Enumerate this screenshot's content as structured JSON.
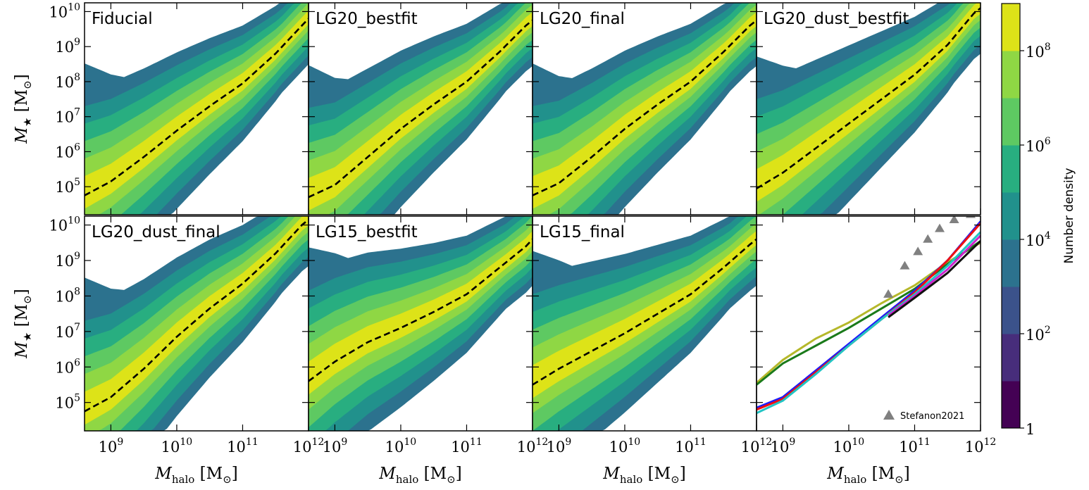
{
  "chart_data": {
    "type": "heatmap",
    "xlabel": "M_halo [M_⊙]",
    "xlabel_main": "M",
    "xlabel_sub": "halo",
    "xlabel_unit": "[M",
    "xlabel_unit_sub": "⊙",
    "xlabel_close": "]",
    "ylabel": "M_★ [M_⊙]",
    "ylabel_main": "M",
    "ylabel_sub": "★",
    "ylabel_unit": "[M",
    "ylabel_unit_sub": "⊙",
    "ylabel_close": "]",
    "xscale": "log",
    "yscale": "log",
    "xlim_exp": [
      8.6,
      12.0
    ],
    "ylim_exp": [
      4.2,
      10.25
    ],
    "x_tick_exps": [
      9,
      10,
      11,
      12
    ],
    "y_tick_exps": [
      5,
      6,
      7,
      8,
      9,
      10
    ],
    "tick_base": "10",
    "panels": [
      {
        "title": "Fiducial",
        "median_curve": [
          [
            8.6,
            4.75
          ],
          [
            9.0,
            5.15
          ],
          [
            9.5,
            5.85
          ],
          [
            10.0,
            6.6
          ],
          [
            10.5,
            7.3
          ],
          [
            11.0,
            7.95
          ],
          [
            11.5,
            8.8
          ],
          [
            11.9,
            9.6
          ],
          [
            12.0,
            9.8
          ]
        ]
      },
      {
        "title": "LG20_bestfit",
        "median_curve": [
          [
            8.6,
            4.7
          ],
          [
            9.0,
            5.05
          ],
          [
            9.5,
            5.85
          ],
          [
            10.0,
            6.65
          ],
          [
            10.5,
            7.35
          ],
          [
            11.0,
            8.0
          ],
          [
            11.5,
            8.85
          ],
          [
            11.9,
            9.6
          ],
          [
            12.0,
            9.75
          ]
        ]
      },
      {
        "title": "LG20_final",
        "median_curve": [
          [
            8.6,
            4.75
          ],
          [
            9.0,
            5.1
          ],
          [
            9.5,
            5.85
          ],
          [
            10.0,
            6.65
          ],
          [
            10.5,
            7.35
          ],
          [
            11.0,
            8.0
          ],
          [
            11.5,
            8.85
          ],
          [
            11.9,
            9.6
          ],
          [
            12.0,
            9.75
          ]
        ]
      },
      {
        "title": "LG20_dust_bestfit",
        "median_curve": [
          [
            8.6,
            4.95
          ],
          [
            9.0,
            5.4
          ],
          [
            9.5,
            6.1
          ],
          [
            10.0,
            6.8
          ],
          [
            10.5,
            7.5
          ],
          [
            11.0,
            8.2
          ],
          [
            11.5,
            9.05
          ],
          [
            11.9,
            9.95
          ],
          [
            12.0,
            10.1
          ]
        ]
      },
      {
        "title": "LG20_dust_final",
        "median_curve": [
          [
            8.6,
            4.75
          ],
          [
            9.0,
            5.15
          ],
          [
            9.5,
            5.95
          ],
          [
            10.0,
            6.85
          ],
          [
            10.5,
            7.65
          ],
          [
            11.0,
            8.35
          ],
          [
            11.5,
            9.2
          ],
          [
            11.9,
            10.0
          ],
          [
            12.0,
            10.15
          ]
        ]
      },
      {
        "title": "LG15_bestfit",
        "median_curve": [
          [
            8.6,
            5.6
          ],
          [
            9.0,
            6.15
          ],
          [
            9.5,
            6.7
          ],
          [
            10.0,
            7.1
          ],
          [
            10.5,
            7.55
          ],
          [
            11.0,
            8.05
          ],
          [
            11.5,
            8.8
          ],
          [
            11.9,
            9.4
          ],
          [
            12.0,
            9.6
          ]
        ]
      },
      {
        "title": "LG15_final",
        "median_curve": [
          [
            8.6,
            5.5
          ],
          [
            9.0,
            5.95
          ],
          [
            9.5,
            6.45
          ],
          [
            10.0,
            6.95
          ],
          [
            10.5,
            7.5
          ],
          [
            11.0,
            8.05
          ],
          [
            11.5,
            8.8
          ],
          [
            11.9,
            9.45
          ],
          [
            12.0,
            9.6
          ]
        ]
      }
    ],
    "comparison_panel": {
      "series": [
        {
          "name": "yellow-green",
          "color": "#b5b82a",
          "points": [
            [
              8.6,
              5.55
            ],
            [
              9.0,
              6.2
            ],
            [
              9.5,
              6.8
            ],
            [
              10.0,
              7.25
            ],
            [
              10.5,
              7.8
            ],
            [
              11.0,
              8.3
            ],
            [
              11.5,
              8.95
            ],
            [
              12.0,
              9.5
            ]
          ]
        },
        {
          "name": "green",
          "color": "#1a7a1a",
          "points": [
            [
              8.6,
              5.5
            ],
            [
              9.0,
              6.1
            ],
            [
              9.5,
              6.6
            ],
            [
              10.0,
              7.1
            ],
            [
              10.5,
              7.65
            ],
            [
              11.0,
              8.2
            ],
            [
              11.5,
              8.9
            ],
            [
              12.0,
              9.55
            ]
          ]
        },
        {
          "name": "blue",
          "color": "#1a1aff",
          "points": [
            [
              8.6,
              4.85
            ],
            [
              9.0,
              5.15
            ],
            [
              9.5,
              5.9
            ],
            [
              10.0,
              6.65
            ],
            [
              10.5,
              7.4
            ],
            [
              11.0,
              8.15
            ],
            [
              11.5,
              9.0
            ],
            [
              12.0,
              10.1
            ]
          ]
        },
        {
          "name": "red",
          "color": "#ee1010",
          "points": [
            [
              8.6,
              4.8
            ],
            [
              9.0,
              5.1
            ],
            [
              9.5,
              5.85
            ],
            [
              10.0,
              6.6
            ],
            [
              10.5,
              7.35
            ],
            [
              11.0,
              8.1
            ],
            [
              11.5,
              9.0
            ],
            [
              12.0,
              10.05
            ]
          ]
        },
        {
          "name": "cyan",
          "color": "#22c4c4",
          "points": [
            [
              8.6,
              4.7
            ],
            [
              9.0,
              5.05
            ],
            [
              9.5,
              5.8
            ],
            [
              10.0,
              6.6
            ],
            [
              10.5,
              7.35
            ],
            [
              11.0,
              8.05
            ],
            [
              11.5,
              8.85
            ],
            [
              12.0,
              9.8
            ]
          ]
        },
        {
          "name": "magenta",
          "color": "#cc22cc",
          "points": [
            [
              10.6,
              7.45
            ],
            [
              11.0,
              8.0
            ],
            [
              11.5,
              8.75
            ],
            [
              12.0,
              9.7
            ]
          ]
        },
        {
          "name": "black",
          "color": "#111111",
          "points": [
            [
              10.6,
              7.4
            ],
            [
              11.0,
              7.95
            ],
            [
              11.5,
              8.65
            ],
            [
              12.0,
              9.55
            ]
          ]
        }
      ],
      "stefanon2021": {
        "label": "Stefanon2021",
        "color": "#808080",
        "points": [
          [
            10.6,
            8.05
          ],
          [
            10.85,
            8.85
          ],
          [
            11.05,
            9.25
          ],
          [
            11.2,
            9.6
          ],
          [
            11.38,
            9.9
          ],
          [
            11.6,
            10.15
          ],
          [
            11.85,
            10.3
          ]
        ]
      }
    },
    "colorbar": {
      "label": "Number density",
      "colormap": "viridis",
      "levels": 9,
      "tick_labels": [
        "1",
        "10",
        "10",
        "10",
        "10"
      ],
      "tick_exponents": [
        "",
        "2",
        "4",
        "6",
        "8"
      ],
      "range_exp": [
        0,
        9
      ]
    },
    "colors": {
      "yellow": "#dde318",
      "light_green": "#8fd744",
      "green": "#5ec962",
      "teal_green": "#28ae80",
      "teal": "#21918c",
      "blue_teal": "#2c728e",
      "steel_blue": "#3b528b",
      "indigo": "#472d7b",
      "purple": "#440154"
    }
  }
}
